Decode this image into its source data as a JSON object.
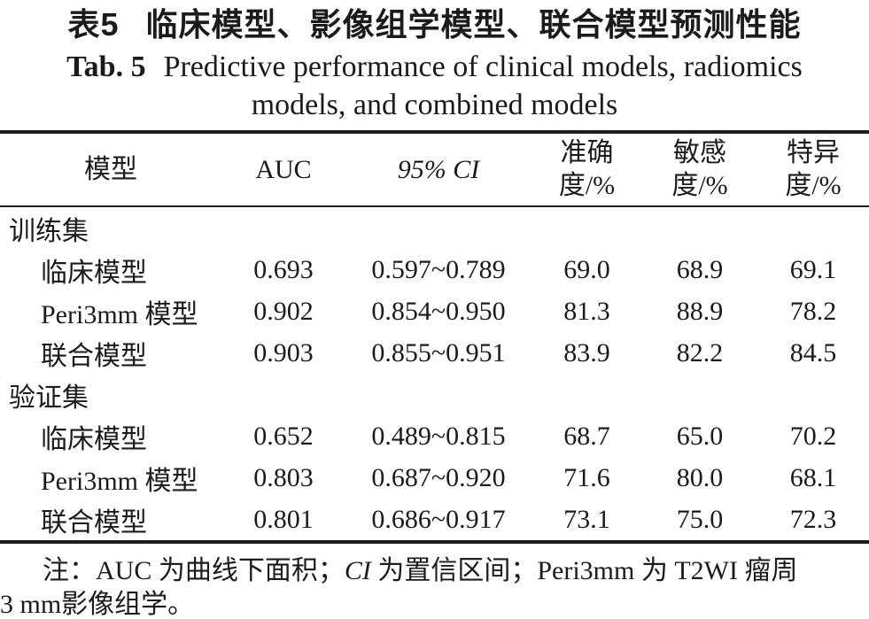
{
  "title": {
    "zh_label": "表5",
    "zh_text": "临床模型、影像组学模型、联合模型预测性能",
    "en_label": "Tab. 5",
    "en_line1": "Predictive performance of clinical models, radiomics",
    "en_line2": "models, and combined models"
  },
  "table": {
    "header": {
      "model": "模型",
      "auc": "AUC",
      "ci": "95% CI",
      "accuracy_line1": "准确",
      "accuracy_line2": "度/%",
      "sensitivity_line1": "敏感",
      "sensitivity_line2": "度/%",
      "specificity_line1": "特异",
      "specificity_line2": "度/%"
    },
    "rows": [
      {
        "type": "section",
        "model": "训练集"
      },
      {
        "type": "data",
        "model": "临床模型",
        "auc": "0.693",
        "ci": "0.597~0.789",
        "accuracy": "69.0",
        "sensitivity": "68.9",
        "specificity": "69.1"
      },
      {
        "type": "data",
        "model": "Peri3mm 模型",
        "auc": "0.902",
        "ci": "0.854~0.950",
        "accuracy": "81.3",
        "sensitivity": "88.9",
        "specificity": "78.2"
      },
      {
        "type": "data",
        "model": "联合模型",
        "auc": "0.903",
        "ci": "0.855~0.951",
        "accuracy": "83.9",
        "sensitivity": "82.2",
        "specificity": "84.5"
      },
      {
        "type": "section",
        "model": "验证集"
      },
      {
        "type": "data",
        "model": "临床模型",
        "auc": "0.652",
        "ci": "0.489~0.815",
        "accuracy": "68.7",
        "sensitivity": "65.0",
        "specificity": "70.2"
      },
      {
        "type": "data",
        "model": "Peri3mm 模型",
        "auc": "0.803",
        "ci": "0.687~0.920",
        "accuracy": "71.6",
        "sensitivity": "80.0",
        "specificity": "68.1"
      },
      {
        "type": "data",
        "model": "联合模型",
        "auc": "0.801",
        "ci": "0.686~0.917",
        "accuracy": "73.1",
        "sensitivity": "75.0",
        "specificity": "72.3"
      }
    ]
  },
  "note": {
    "seg1": "注：AUC 为曲线下面积；",
    "ci_italic": "CI",
    "seg2": " 为置信区间；Peri3mm 为 T2WI 瘤周",
    "line2": "3 mm影像组学。"
  },
  "colors": {
    "text": "#1b1b1b",
    "rule": "#1c1c1c",
    "background": "#ffffff"
  }
}
